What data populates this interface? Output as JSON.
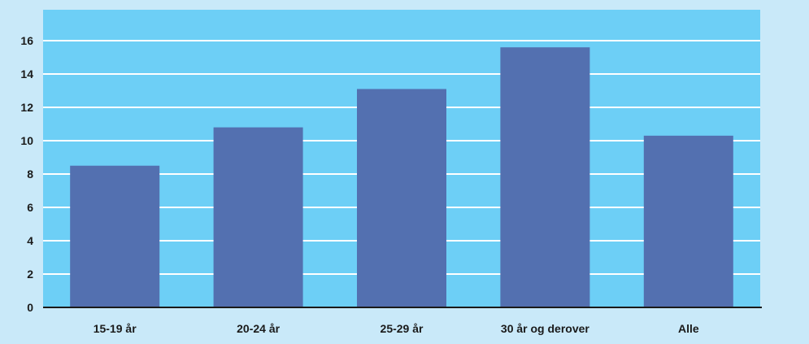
{
  "chart_data": {
    "type": "bar",
    "title": "",
    "xlabel": "",
    "ylabel": "",
    "categories": [
      "15-19 år",
      "20-24 år",
      "25-29 år",
      "30 år og derover",
      "Alle"
    ],
    "values": [
      8.5,
      10.8,
      13.1,
      15.6,
      10.3
    ],
    "ylim": [
      0,
      16
    ],
    "yticks": [
      0,
      2,
      4,
      6,
      8,
      10,
      12,
      14,
      16
    ],
    "grid": true,
    "colors": {
      "page_background": "#c9e9f9",
      "plot_background": "#6dcff6",
      "bar": "#5370b0",
      "gridline": "#ffffff",
      "axis": "#1a1a1a"
    }
  }
}
